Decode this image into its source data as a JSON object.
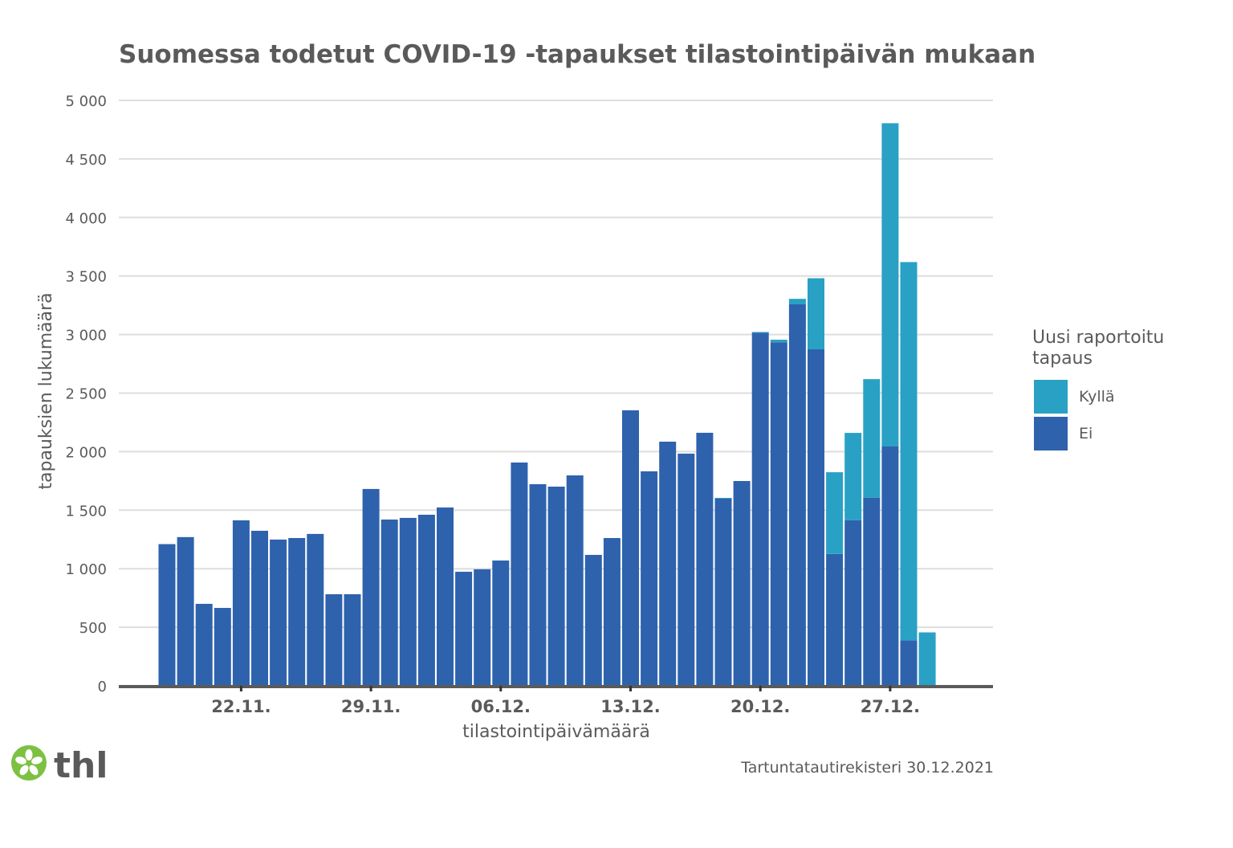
{
  "title": "Suomessa todetut COVID-19 -tapaukset tilastointipäivän mukaan",
  "source": "Tartuntatautirekisteri 30.12.2021",
  "logo_text": "thl",
  "legend": {
    "title": "Uusi raportoitu tapaus",
    "items": [
      {
        "label": "Kyllä",
        "color": "#29a1c4"
      },
      {
        "label": "Ei",
        "color": "#2e62ad"
      }
    ]
  },
  "chart_data": {
    "type": "bar",
    "stacked": true,
    "title": "Suomessa todetut COVID-19 -tapaukset tilastointipäivän mukaan",
    "xlabel": "tilastointipäivämäärä",
    "ylabel": "tapauksien lukumäärä",
    "ylim": [
      0,
      5000
    ],
    "yticks": [
      0,
      500,
      1000,
      1500,
      2000,
      2500,
      3000,
      3500,
      4000,
      4500,
      5000
    ],
    "ytick_labels": [
      "0",
      "500",
      "1 000",
      "1 500",
      "2 000",
      "2 500",
      "3 000",
      "3 500",
      "4 000",
      "4 500",
      "5 000"
    ],
    "xtick_labels": [
      "22.11.",
      "29.11.",
      "06.12.",
      "13.12.",
      "20.12.",
      "27.12."
    ],
    "xtick_positions": [
      4,
      11,
      18,
      25,
      32,
      39
    ],
    "categories": [
      "18.11.",
      "19.11.",
      "20.11.",
      "21.11.",
      "22.11.",
      "23.11.",
      "24.11.",
      "25.11.",
      "26.11.",
      "27.11.",
      "28.11.",
      "29.11.",
      "30.11.",
      "01.12.",
      "02.12.",
      "03.12.",
      "04.12.",
      "05.12.",
      "06.12.",
      "07.12.",
      "08.12.",
      "09.12.",
      "10.12.",
      "11.12.",
      "12.12.",
      "13.12.",
      "14.12.",
      "15.12.",
      "16.12.",
      "17.12.",
      "18.12.",
      "19.12.",
      "20.12.",
      "21.12.",
      "22.12.",
      "23.12.",
      "24.12.",
      "25.12.",
      "26.12.",
      "27.12.",
      "28.12.",
      "29.12."
    ],
    "grid": true,
    "legend_position": "right",
    "series": [
      {
        "name": "Ei",
        "color": "#2e62ad",
        "values": [
          1210,
          1270,
          700,
          665,
          1413,
          1324,
          1249,
          1262,
          1297,
          782,
          782,
          1681,
          1420,
          1434,
          1461,
          1523,
          974,
          995,
          1070,
          1907,
          1722,
          1701,
          1797,
          1118,
          1262,
          2353,
          1832,
          2085,
          1983,
          2161,
          1598,
          1749,
          3016,
          2934,
          3258,
          2874,
          1126,
          1415,
          1607,
          2044,
          387,
          0
        ]
      },
      {
        "name": "Kyllä",
        "color": "#29a1c4",
        "values": [
          0,
          0,
          0,
          0,
          0,
          0,
          0,
          0,
          0,
          0,
          0,
          0,
          0,
          0,
          0,
          0,
          0,
          0,
          0,
          0,
          0,
          0,
          0,
          0,
          0,
          0,
          0,
          0,
          0,
          0,
          7,
          0,
          6,
          22,
          47,
          607,
          698,
          745,
          1012,
          2761,
          3232,
          456
        ]
      }
    ]
  }
}
